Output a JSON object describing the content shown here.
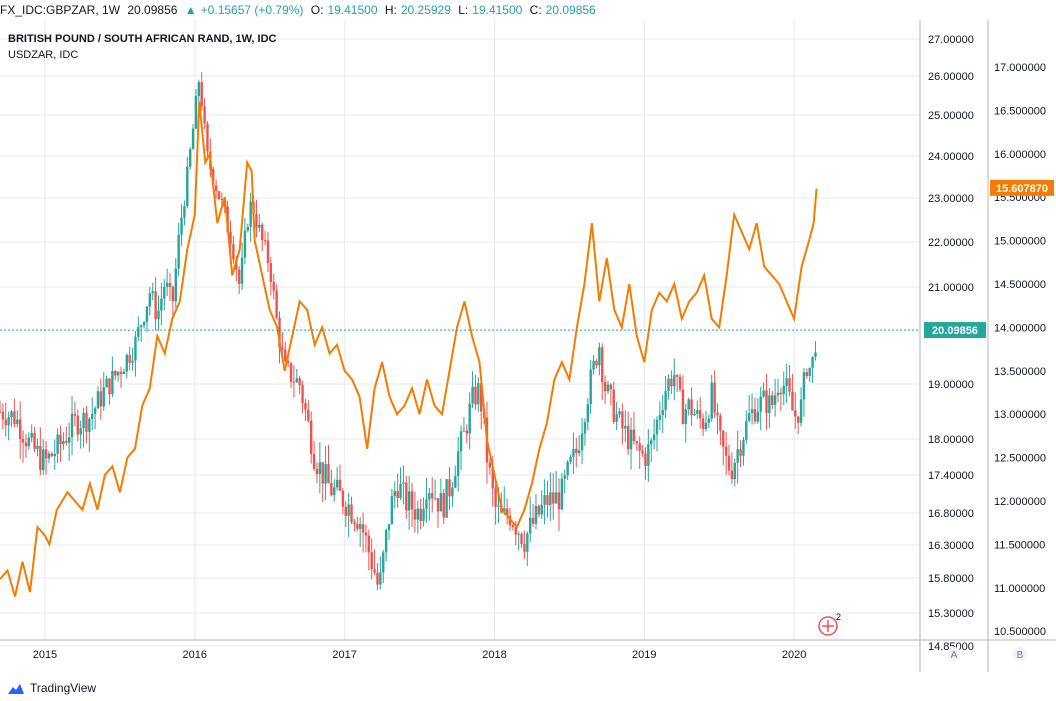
{
  "header": {
    "symbol": "FX_IDC:GBPZAR, 1W",
    "last": "20.09856",
    "change": "+0.15657 (+0.79%)",
    "open_label": "O:",
    "open": "19.41500",
    "high_label": "H:",
    "high": "20.25929",
    "low_label": "L:",
    "low": "19.41500",
    "close_label": "C:",
    "close": "20.09856"
  },
  "legend": {
    "main_title": "BRITISH POUND / SOUTH AFRICAN RAND, 1W, IDC",
    "overlay_title": "USDZAR, IDC"
  },
  "axis_a_label": "A",
  "axis_b_label": "B",
  "branding": {
    "name": "TradingView"
  },
  "flag_icon_count": "2",
  "colors": {
    "up": "#26a69a",
    "down": "#ef5350",
    "overlay": "#f57c00",
    "last_price": "#26a69a",
    "grid": "#e6e9ef"
  },
  "chart_data": {
    "type": "candlestick-with-line-overlay",
    "x_ticks": [
      "2015",
      "2016",
      "2017",
      "2018",
      "2019",
      "2020"
    ],
    "x_range": [
      2014.7,
      2020.84
    ],
    "left_axis": {
      "name": "GBPZAR",
      "labels": [
        "27.00000",
        "26.00000",
        "25.00000",
        "24.00000",
        "23.00000",
        "22.00000",
        "21.00000",
        "19.00000",
        "18.00000",
        "17.40000",
        "16.80000",
        "16.30000",
        "15.80000",
        "15.30000",
        "14.85000"
      ],
      "last_value": "20.09856"
    },
    "right_axis": {
      "name": "USDZAR",
      "labels": [
        "17.000000",
        "16.500000",
        "16.000000",
        "15.500000",
        "15.000000",
        "14.500000",
        "14.000000",
        "13.500000",
        "13.000000",
        "12.500000",
        "12.000000",
        "11.500000",
        "11.000000",
        "10.500000"
      ],
      "last_value": "15.607870"
    },
    "gbpzar_close": [
      [
        2014.7,
        18.5
      ],
      [
        2014.8,
        18.4
      ],
      [
        2014.9,
        17.9
      ],
      [
        2015.0,
        17.6
      ],
      [
        2015.1,
        17.9
      ],
      [
        2015.2,
        18.3
      ],
      [
        2015.3,
        18.4
      ],
      [
        2015.4,
        18.9
      ],
      [
        2015.5,
        19.3
      ],
      [
        2015.6,
        19.8
      ],
      [
        2015.7,
        20.9
      ],
      [
        2015.75,
        20.4
      ],
      [
        2015.8,
        21.1
      ],
      [
        2015.85,
        20.6
      ],
      [
        2015.9,
        22.3
      ],
      [
        2015.95,
        23.5
      ],
      [
        2016.0,
        25.0
      ],
      [
        2016.03,
        26.0
      ],
      [
        2016.08,
        24.0
      ],
      [
        2016.15,
        23.2
      ],
      [
        2016.25,
        22.0
      ],
      [
        2016.3,
        21.0
      ],
      [
        2016.35,
        22.5
      ],
      [
        2016.38,
        22.9
      ],
      [
        2016.45,
        22.0
      ],
      [
        2016.5,
        21.5
      ],
      [
        2016.55,
        20.2
      ],
      [
        2016.6,
        19.3
      ],
      [
        2016.7,
        19.0
      ],
      [
        2016.8,
        17.7
      ],
      [
        2016.9,
        17.2
      ],
      [
        2017.0,
        17.0
      ],
      [
        2017.1,
        16.7
      ],
      [
        2017.15,
        16.3
      ],
      [
        2017.2,
        15.9
      ],
      [
        2017.23,
        15.6
      ],
      [
        2017.3,
        16.8
      ],
      [
        2017.35,
        17.3
      ],
      [
        2017.4,
        17.0
      ],
      [
        2017.5,
        16.8
      ],
      [
        2017.55,
        17.3
      ],
      [
        2017.6,
        17.1
      ],
      [
        2017.65,
        16.9
      ],
      [
        2017.7,
        17.2
      ],
      [
        2017.75,
        17.7
      ],
      [
        2017.8,
        18.1
      ],
      [
        2017.85,
        18.7
      ],
      [
        2017.9,
        18.9
      ],
      [
        2017.95,
        17.7
      ],
      [
        2018.0,
        16.9
      ],
      [
        2018.05,
        16.7
      ],
      [
        2018.1,
        16.8
      ],
      [
        2018.15,
        16.6
      ],
      [
        2018.2,
        16.4
      ],
      [
        2018.25,
        16.6
      ],
      [
        2018.3,
        16.8
      ],
      [
        2018.35,
        17.0
      ],
      [
        2018.4,
        17.0
      ],
      [
        2018.45,
        17.1
      ],
      [
        2018.5,
        17.5
      ],
      [
        2018.55,
        17.8
      ],
      [
        2018.6,
        18.5
      ],
      [
        2018.65,
        19.2
      ],
      [
        2018.7,
        19.8
      ],
      [
        2018.73,
        19.0
      ],
      [
        2018.8,
        18.5
      ],
      [
        2018.85,
        18.2
      ],
      [
        2018.9,
        18.0
      ],
      [
        2018.95,
        17.8
      ],
      [
        2019.0,
        17.7
      ],
      [
        2019.05,
        17.9
      ],
      [
        2019.1,
        18.5
      ],
      [
        2019.15,
        19.0
      ],
      [
        2019.2,
        19.2
      ],
      [
        2019.25,
        18.5
      ],
      [
        2019.3,
        18.6
      ],
      [
        2019.35,
        18.4
      ],
      [
        2019.4,
        18.3
      ],
      [
        2019.45,
        18.8
      ],
      [
        2019.5,
        18.0
      ],
      [
        2019.55,
        17.6
      ],
      [
        2019.58,
        17.5
      ],
      [
        2019.62,
        17.8
      ],
      [
        2019.7,
        18.4
      ],
      [
        2019.75,
        18.6
      ],
      [
        2019.8,
        18.7
      ],
      [
        2019.85,
        18.6
      ],
      [
        2019.9,
        19.1
      ],
      [
        2019.95,
        18.9
      ],
      [
        2020.0,
        18.4
      ],
      [
        2020.05,
        18.6
      ],
      [
        2020.08,
        19.4
      ],
      [
        2020.1,
        19.3
      ],
      [
        2020.13,
        19.5
      ],
      [
        2020.15,
        20.1
      ]
    ],
    "usdzar_close": [
      [
        2014.7,
        11.1
      ],
      [
        2014.75,
        11.2
      ],
      [
        2014.8,
        10.9
      ],
      [
        2014.85,
        11.3
      ],
      [
        2014.9,
        10.95
      ],
      [
        2014.95,
        11.7
      ],
      [
        2015.0,
        11.6
      ],
      [
        2015.03,
        11.5
      ],
      [
        2015.08,
        11.9
      ],
      [
        2015.15,
        12.1
      ],
      [
        2015.2,
        12.0
      ],
      [
        2015.25,
        11.9
      ],
      [
        2015.3,
        12.2
      ],
      [
        2015.35,
        11.9
      ],
      [
        2015.4,
        12.3
      ],
      [
        2015.45,
        12.4
      ],
      [
        2015.5,
        12.1
      ],
      [
        2015.55,
        12.5
      ],
      [
        2015.6,
        12.6
      ],
      [
        2015.65,
        13.1
      ],
      [
        2015.7,
        13.3
      ],
      [
        2015.75,
        13.9
      ],
      [
        2015.8,
        13.7
      ],
      [
        2015.85,
        14.1
      ],
      [
        2015.9,
        14.3
      ],
      [
        2015.95,
        14.9
      ],
      [
        2016.0,
        15.3
      ],
      [
        2016.03,
        16.6
      ],
      [
        2016.07,
        15.9
      ],
      [
        2016.1,
        16.0
      ],
      [
        2016.15,
        15.2
      ],
      [
        2016.2,
        15.5
      ],
      [
        2016.25,
        14.6
      ],
      [
        2016.3,
        14.9
      ],
      [
        2016.35,
        15.9
      ],
      [
        2016.38,
        15.8
      ],
      [
        2016.4,
        15.0
      ],
      [
        2016.45,
        14.6
      ],
      [
        2016.5,
        14.2
      ],
      [
        2016.55,
        14.0
      ],
      [
        2016.6,
        13.5
      ],
      [
        2016.65,
        13.9
      ],
      [
        2016.7,
        14.3
      ],
      [
        2016.75,
        14.2
      ],
      [
        2016.8,
        13.8
      ],
      [
        2016.85,
        14.0
      ],
      [
        2016.9,
        13.7
      ],
      [
        2016.95,
        13.8
      ],
      [
        2017.0,
        13.5
      ],
      [
        2017.05,
        13.4
      ],
      [
        2017.1,
        13.2
      ],
      [
        2017.15,
        12.6
      ],
      [
        2017.2,
        13.3
      ],
      [
        2017.25,
        13.6
      ],
      [
        2017.3,
        13.2
      ],
      [
        2017.35,
        13.0
      ],
      [
        2017.4,
        13.1
      ],
      [
        2017.45,
        13.3
      ],
      [
        2017.5,
        13.0
      ],
      [
        2017.55,
        13.4
      ],
      [
        2017.6,
        13.1
      ],
      [
        2017.65,
        13.0
      ],
      [
        2017.7,
        13.5
      ],
      [
        2017.75,
        14.0
      ],
      [
        2017.8,
        14.3
      ],
      [
        2017.85,
        13.9
      ],
      [
        2017.9,
        13.6
      ],
      [
        2017.95,
        12.7
      ],
      [
        2018.0,
        12.3
      ],
      [
        2018.05,
        11.9
      ],
      [
        2018.1,
        11.8
      ],
      [
        2018.15,
        11.7
      ],
      [
        2018.2,
        11.9
      ],
      [
        2018.25,
        12.2
      ],
      [
        2018.3,
        12.6
      ],
      [
        2018.35,
        12.9
      ],
      [
        2018.4,
        13.4
      ],
      [
        2018.45,
        13.6
      ],
      [
        2018.5,
        13.4
      ],
      [
        2018.55,
        14.0
      ],
      [
        2018.6,
        14.5
      ],
      [
        2018.65,
        15.2
      ],
      [
        2018.7,
        14.3
      ],
      [
        2018.75,
        14.8
      ],
      [
        2018.8,
        14.2
      ],
      [
        2018.85,
        14.0
      ],
      [
        2018.9,
        14.5
      ],
      [
        2018.95,
        13.9
      ],
      [
        2019.0,
        13.6
      ],
      [
        2019.05,
        14.2
      ],
      [
        2019.1,
        14.4
      ],
      [
        2019.15,
        14.3
      ],
      [
        2019.2,
        14.5
      ],
      [
        2019.25,
        14.1
      ],
      [
        2019.3,
        14.3
      ],
      [
        2019.35,
        14.4
      ],
      [
        2019.4,
        14.6
      ],
      [
        2019.45,
        14.1
      ],
      [
        2019.5,
        14.0
      ],
      [
        2019.55,
        14.6
      ],
      [
        2019.6,
        15.3
      ],
      [
        2019.65,
        15.1
      ],
      [
        2019.7,
        14.9
      ],
      [
        2019.75,
        15.2
      ],
      [
        2019.8,
        14.7
      ],
      [
        2019.85,
        14.6
      ],
      [
        2019.9,
        14.5
      ],
      [
        2019.95,
        14.3
      ],
      [
        2020.0,
        14.1
      ],
      [
        2020.05,
        14.7
      ],
      [
        2020.1,
        15.0
      ],
      [
        2020.13,
        15.2
      ],
      [
        2020.15,
        15.6
      ]
    ]
  }
}
